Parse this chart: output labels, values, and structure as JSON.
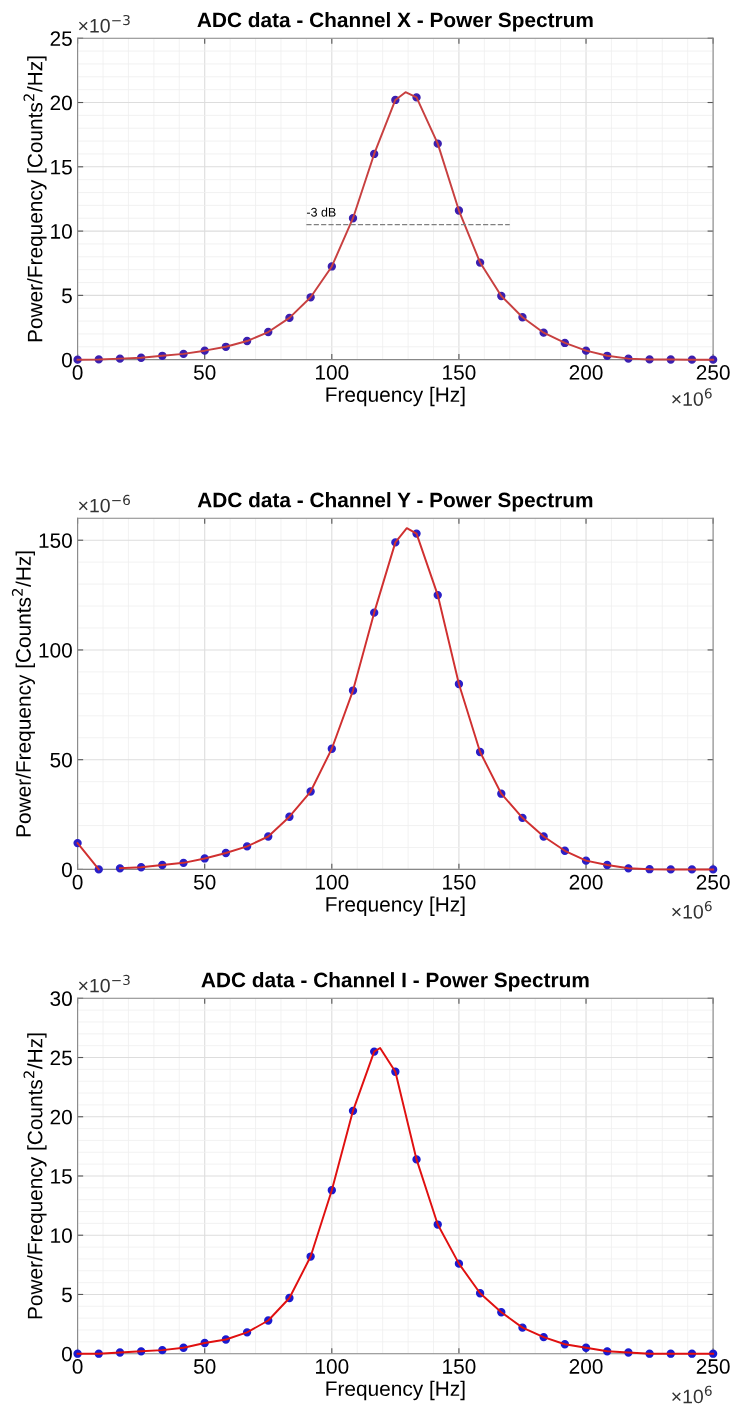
{
  "chart_data": [
    {
      "type": "scatter",
      "title": "ADC data - Channel X - Power Spectrum",
      "xlabel": "Frequency [Hz]",
      "ylabel": "Power/Frequency [Counts$^{2}$/Hz]",
      "x": [
        0,
        8.33,
        16.67,
        25,
        33.33,
        41.67,
        50,
        58.33,
        66.67,
        75,
        83.33,
        91.67,
        100,
        108.33,
        116.67,
        125,
        133.33,
        141.67,
        150,
        158.33,
        166.67,
        175,
        183.33,
        191.67,
        200,
        208.33,
        216.67,
        225,
        233.33,
        241.67,
        250
      ],
      "series": [
        {
          "marker": "circle",
          "color": "#3a1fb0",
          "values": [
            0,
            0.02,
            0.08,
            0.15,
            0.3,
            0.45,
            0.7,
            1.0,
            1.45,
            2.15,
            3.25,
            4.85,
            7.25,
            11.0,
            16.0,
            20.2,
            20.4,
            16.8,
            11.6,
            7.55,
            4.95,
            3.3,
            2.1,
            1.3,
            0.7,
            0.3,
            0.08,
            0.02,
            0.01,
            0,
            0
          ]
        },
        {
          "type": "line",
          "color": "#c84040",
          "x": [
            0,
            8.33,
            16.67,
            25,
            33.33,
            41.67,
            50,
            58.33,
            66.67,
            75,
            83.33,
            91.67,
            100,
            108.33,
            116.67,
            125,
            129,
            133.33,
            141.67,
            150,
            158.33,
            166.67,
            175,
            183.33,
            191.67,
            200,
            208.33,
            216.67,
            225,
            233.33,
            241.67,
            250
          ],
          "values": [
            0,
            0.02,
            0.08,
            0.15,
            0.3,
            0.45,
            0.7,
            1.0,
            1.45,
            2.15,
            3.25,
            4.85,
            7.25,
            11.0,
            16.0,
            20.2,
            20.8,
            20.4,
            16.8,
            11.6,
            7.55,
            4.95,
            3.3,
            2.1,
            1.3,
            0.7,
            0.3,
            0.08,
            0.02,
            0.01,
            0,
            0
          ]
        },
        {
          "type": "line",
          "color": "#808080",
          "line_style": "dashed",
          "x": [
            90,
            170
          ],
          "values": [
            10.5,
            10.5
          ]
        }
      ],
      "annotations": [
        {
          "text": "-3 dB",
          "x": 90,
          "y": 10.5
        },
        "×10$^{−3}$",
        "×10$^{6}$"
      ],
      "xlim": [
        0,
        250
      ],
      "xticks": [
        0,
        50,
        100,
        150,
        200,
        250
      ],
      "ylim": [
        0,
        25
      ],
      "yticks": [
        0,
        5,
        10,
        15,
        20,
        25
      ],
      "grid": true
    },
    {
      "type": "scatter",
      "title": "ADC data - Channel Y - Power Spectrum",
      "xlabel": "Frequency [Hz]",
      "ylabel": "Power/Frequency [Counts$^{2}$/Hz]",
      "x": [
        0,
        8.33,
        16.67,
        25,
        33.33,
        41.67,
        50,
        58.33,
        66.67,
        75,
        83.33,
        91.67,
        100,
        108.33,
        116.67,
        125,
        133.33,
        141.67,
        150,
        158.33,
        166.67,
        175,
        183.33,
        191.67,
        200,
        208.33,
        216.67,
        225,
        233.33,
        241.67,
        250
      ],
      "series": [
        {
          "marker": "circle",
          "color": "#2a1fc8",
          "values": [
            12,
            0,
            0.5,
            1,
            2,
            3,
            5,
            7.5,
            10.5,
            15,
            24,
            35.5,
            55,
            81.5,
            117,
            149,
            153,
            125,
            84.5,
            53.5,
            34.5,
            23.5,
            15,
            8.5,
            4,
            2,
            0.5,
            0.1,
            0,
            0,
            0
          ]
        },
        {
          "type": "line",
          "color": "#d03030",
          "x": [
            0,
            8.33,
            12.5,
            16.67,
            25,
            33.33,
            41.67,
            50,
            58.33,
            66.67,
            75,
            83.33,
            91.67,
            100,
            108.33,
            116.67,
            125,
            129.5,
            133.33,
            141.67,
            150,
            158.33,
            166.67,
            175,
            183.33,
            191.67,
            200,
            208.33,
            216.67,
            225,
            233.33,
            241.67,
            250
          ],
          "values": [
            12,
            0,
            null,
            0.5,
            1,
            2,
            3,
            5,
            7.5,
            10.5,
            15,
            24,
            35.5,
            55,
            81.5,
            117,
            149,
            155.5,
            153,
            125,
            84.5,
            53.5,
            34.5,
            23.5,
            15,
            8.5,
            4,
            2,
            0.5,
            0.1,
            0,
            0,
            0
          ]
        }
      ],
      "annotations": [
        "×10$^{−6}$",
        "×10$^{6}$"
      ],
      "xlim": [
        0,
        250
      ],
      "xticks": [
        0,
        50,
        100,
        150,
        200,
        250
      ],
      "ylim": [
        0,
        160
      ],
      "yticks": [
        0,
        50,
        100,
        150
      ],
      "grid": true
    },
    {
      "type": "scatter",
      "title": "ADC data - Channel I - Power Spectrum",
      "xlabel": "Frequency [Hz]",
      "ylabel": "Power/Frequency [Counts$^{2}$/Hz]",
      "x": [
        0,
        8.33,
        16.67,
        25,
        33.33,
        41.67,
        50,
        58.33,
        66.67,
        75,
        83.33,
        91.67,
        100,
        108.33,
        116.67,
        125,
        133.33,
        141.67,
        150,
        158.33,
        166.67,
        175,
        183.33,
        191.67,
        200,
        208.33,
        216.67,
        225,
        233.33,
        241.67,
        250
      ],
      "series": [
        {
          "marker": "circle",
          "color": "#1a1ad0",
          "values": [
            0,
            0,
            0.1,
            0.2,
            0.3,
            0.5,
            0.9,
            1.2,
            1.8,
            2.8,
            4.7,
            8.2,
            13.8,
            20.5,
            25.5,
            23.8,
            16.4,
            10.9,
            7.6,
            5.1,
            3.5,
            2.2,
            1.4,
            0.8,
            0.5,
            0.2,
            0.1,
            0,
            0,
            0,
            0
          ]
        },
        {
          "type": "line",
          "color": "#e01010",
          "x": [
            0,
            8.33,
            16.67,
            25,
            33.33,
            41.67,
            50,
            58.33,
            66.67,
            75,
            83.33,
            91.67,
            100,
            108.33,
            116.67,
            119,
            125,
            133.33,
            141.67,
            150,
            158.33,
            166.67,
            175,
            183.33,
            191.67,
            200,
            208.33,
            216.67,
            225,
            233.33,
            241.67,
            250
          ],
          "values": [
            0,
            0,
            0.1,
            0.2,
            0.3,
            0.5,
            0.9,
            1.2,
            1.8,
            2.8,
            4.7,
            8.2,
            13.8,
            20.5,
            25.5,
            25.8,
            23.8,
            16.4,
            10.9,
            7.6,
            5.1,
            3.5,
            2.2,
            1.4,
            0.8,
            0.5,
            0.2,
            0.1,
            0,
            0,
            0,
            0
          ]
        }
      ],
      "annotations": [
        "×10$^{−3}$",
        "×10$^{6}$"
      ],
      "xlim": [
        0,
        250
      ],
      "xticks": [
        0,
        50,
        100,
        150,
        200,
        250
      ],
      "ylim": [
        0,
        30
      ],
      "yticks": [
        0,
        5,
        10,
        15,
        20,
        25,
        30
      ],
      "grid": true
    }
  ]
}
